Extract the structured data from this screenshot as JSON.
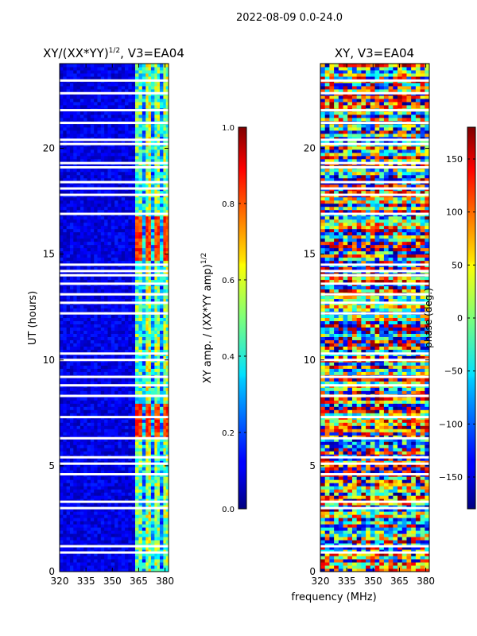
{
  "suptitle": "2022-08-09 0.0-24.0",
  "xlabel_shared": "frequency (MHz)",
  "chart_data": [
    {
      "type": "heatmap",
      "title_main": "XY/(XX*YY)",
      "title_sup": "1/2",
      "title_tail": ", V3=EA04",
      "ylabel": "UT (hours)",
      "xlim": [
        320,
        382
      ],
      "ylim": [
        0,
        24
      ],
      "xticks": [
        320,
        335,
        350,
        365,
        380
      ],
      "yticks": [
        0,
        5,
        10,
        15,
        20
      ],
      "mode": "amplitude",
      "colorbar": {
        "label_main": "XY amp. / (XX*YY amp)",
        "label_sup": "1/2",
        "range": [
          0.0,
          1.0
        ],
        "ticks": [
          "0.0",
          "0.2",
          "0.4",
          "0.6",
          "0.8",
          "1.0"
        ],
        "tick_values": [
          0.0,
          0.2,
          0.4,
          0.6,
          0.8,
          1.0
        ],
        "colormap": "jet"
      },
      "bands": [
        {
          "freq": [
            320,
            363
          ],
          "level": 0.1
        },
        {
          "freq": [
            363,
            367
          ],
          "level": 0.45
        },
        {
          "freq": [
            367,
            369
          ],
          "level": 0.3
        },
        {
          "freq": [
            369,
            372
          ],
          "level": 0.55
        },
        {
          "freq": [
            372,
            374
          ],
          "level": 0.3
        },
        {
          "freq": [
            374,
            377
          ],
          "level": 0.5
        },
        {
          "freq": [
            377,
            379
          ],
          "level": 0.3
        },
        {
          "freq": [
            379,
            382
          ],
          "level": 0.5
        }
      ],
      "hot_windows": [
        [
          6.3,
          8.0
        ],
        [
          14.7,
          16.8
        ]
      ],
      "hot_level": 0.9,
      "gaps_ut": [
        0.9,
        1.2,
        3.0,
        3.3,
        4.6,
        5.1,
        5.4,
        6.3,
        7.3,
        8.3,
        8.8,
        9.2,
        10.0,
        10.3,
        12.2,
        12.7,
        13.1,
        13.6,
        14.0,
        14.2,
        14.5,
        16.9,
        17.8,
        18.1,
        18.4,
        19.1,
        19.3,
        20.2,
        20.4,
        21.2,
        21.8,
        22.6,
        23.2
      ]
    },
    {
      "type": "heatmap",
      "title_main": "XY, V3=EA04",
      "title_sup": "",
      "title_tail": "",
      "ylabel": "",
      "xlim": [
        320,
        382
      ],
      "ylim": [
        0,
        24
      ],
      "xticks": [
        320,
        335,
        350,
        365,
        380
      ],
      "yticks": [
        0,
        5,
        10,
        15,
        20
      ],
      "mode": "phase",
      "colorbar": {
        "label_main": "phase (deg.)",
        "label_sup": "",
        "range": [
          -180,
          180
        ],
        "ticks": [
          "150",
          "100",
          "50",
          "0",
          "−50",
          "−100",
          "−150"
        ],
        "tick_values": [
          150,
          100,
          50,
          0,
          -50,
          -100,
          -150
        ],
        "colormap": "jet"
      },
      "gaps_ut": [
        0.9,
        1.2,
        3.0,
        3.3,
        4.6,
        5.1,
        5.4,
        6.3,
        7.3,
        8.3,
        8.8,
        9.2,
        10.0,
        10.3,
        12.2,
        12.7,
        13.1,
        13.6,
        14.0,
        14.2,
        14.5,
        16.9,
        17.8,
        18.1,
        18.4,
        19.1,
        19.3,
        20.2,
        20.4,
        21.2,
        21.8,
        22.6,
        23.2
      ]
    }
  ]
}
